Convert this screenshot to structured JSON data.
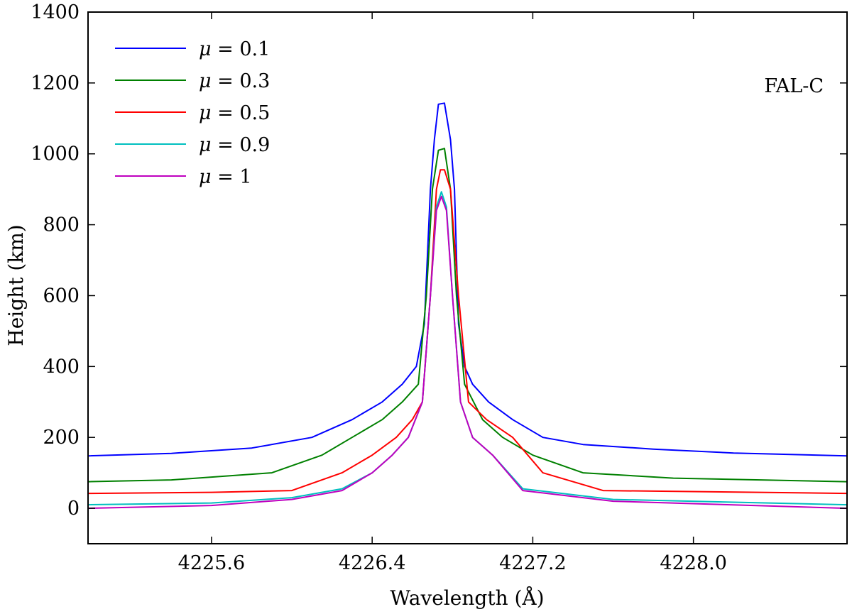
{
  "chart_data": {
    "type": "line",
    "title": "",
    "xlabel": "Wavelength (Å)",
    "ylabel": "Height (km)",
    "xlim": [
      4224.985,
      4228.765
    ],
    "ylim": [
      -100,
      1400
    ],
    "xticks": [
      4225.6,
      4226.4,
      4227.2,
      4228.0
    ],
    "xtick_labels": [
      "4225.6",
      "4226.4",
      "4227.2",
      "4228.0"
    ],
    "yticks": [
      0,
      200,
      400,
      600,
      800,
      1000,
      1200,
      1400
    ],
    "ytick_labels": [
      "0",
      "200",
      "400",
      "600",
      "800",
      "1000",
      "1200",
      "1400"
    ],
    "annotation": "FAL-C",
    "legend_location": "top-left",
    "legend_symbol": "μ",
    "series": [
      {
        "name": "μ = 0.1",
        "label_value": "= 0.1",
        "color": "#0000ff",
        "x": [
          4224.985,
          4225.4,
          4225.8,
          4226.1,
          4226.3,
          4226.45,
          4226.55,
          4226.62,
          4226.66,
          4226.69,
          4226.71,
          4226.73,
          4226.76,
          4226.79,
          4226.81,
          4226.83,
          4226.86,
          4226.9,
          4226.98,
          4227.1,
          4227.25,
          4227.45,
          4227.8,
          4228.2,
          4228.765
        ],
        "y": [
          148,
          155,
          170,
          200,
          250,
          300,
          350,
          400,
          520,
          900,
          1040,
          1140,
          1143,
          1040,
          900,
          520,
          400,
          350,
          300,
          250,
          200,
          180,
          167,
          156,
          148
        ]
      },
      {
        "name": "μ = 0.3",
        "label_value": "= 0.3",
        "color": "#008000",
        "x": [
          4224.985,
          4225.4,
          4225.9,
          4226.15,
          4226.3,
          4226.45,
          4226.55,
          4226.63,
          4226.67,
          4226.7,
          4226.73,
          4226.76,
          4226.79,
          4226.82,
          4226.86,
          4226.95,
          4227.05,
          4227.2,
          4227.45,
          4227.9,
          4228.765
        ],
        "y": [
          75,
          80,
          100,
          150,
          200,
          250,
          300,
          350,
          600,
          900,
          1010,
          1015,
          900,
          600,
          350,
          250,
          200,
          150,
          100,
          85,
          75
        ]
      },
      {
        "name": "μ = 0.5",
        "label_value": "= 0.5",
        "color": "#ff0000",
        "x": [
          4224.985,
          4225.6,
          4226.0,
          4226.25,
          4226.4,
          4226.52,
          4226.6,
          4226.65,
          4226.69,
          4226.72,
          4226.74,
          4226.76,
          4226.79,
          4226.83,
          4226.88,
          4226.97,
          4227.1,
          4227.25,
          4227.55,
          4228.765
        ],
        "y": [
          42,
          45,
          50,
          100,
          150,
          200,
          250,
          300,
          600,
          900,
          955,
          955,
          900,
          600,
          300,
          250,
          200,
          100,
          50,
          42
        ]
      },
      {
        "name": "μ = 0.9",
        "label_value": "= 0.9",
        "color": "#00bfbf",
        "x": [
          4224.985,
          4225.6,
          4226.0,
          4226.25,
          4226.4,
          4226.5,
          4226.58,
          4226.65,
          4226.69,
          4226.72,
          4226.745,
          4226.77,
          4226.8,
          4226.84,
          4226.9,
          4227.0,
          4227.15,
          4227.6,
          4228.765
        ],
        "y": [
          10,
          15,
          30,
          55,
          100,
          150,
          200,
          300,
          600,
          850,
          893,
          850,
          600,
          300,
          200,
          150,
          55,
          25,
          10
        ]
      },
      {
        "name": "μ = 1",
        "label_value": "= 1",
        "color": "#bf00bf",
        "x": [
          4224.985,
          4225.6,
          4226.0,
          4226.25,
          4226.4,
          4226.5,
          4226.58,
          4226.65,
          4226.69,
          4226.72,
          4226.745,
          4226.77,
          4226.8,
          4226.84,
          4226.9,
          4227.0,
          4227.15,
          4227.6,
          4228.765
        ],
        "y": [
          0,
          8,
          25,
          50,
          100,
          150,
          200,
          300,
          600,
          840,
          880,
          840,
          600,
          300,
          200,
          150,
          50,
          20,
          0
        ]
      }
    ]
  }
}
